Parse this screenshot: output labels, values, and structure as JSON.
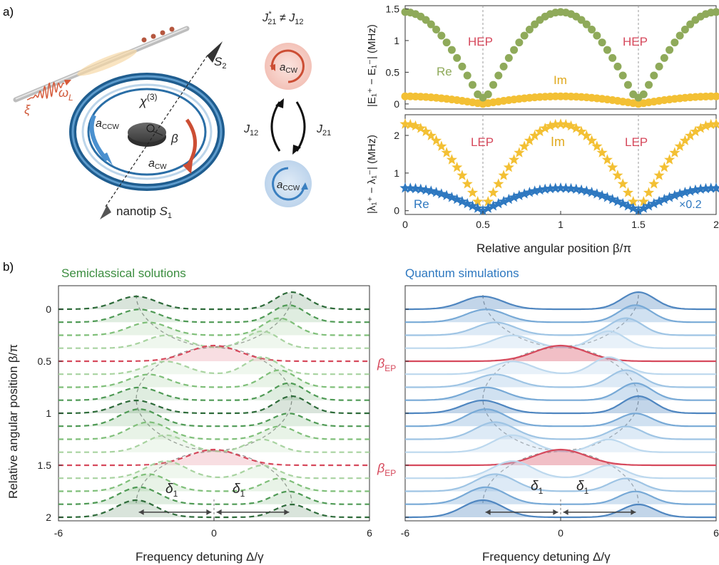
{
  "figure": {
    "panel_a": "a)",
    "panel_b": "b)",
    "schematic": {
      "xi": "ξ",
      "omega": "ω",
      "omega_sub": "L",
      "chi": "χ",
      "chi_sup": "(3)",
      "s2": "S",
      "s2_sub": "2",
      "a_ccw": "a",
      "a_ccw_sub": "CCW",
      "a_cw": "a",
      "a_cw_sub": "CW",
      "beta": "β",
      "nanotip": "nanotip ",
      "s1": "S",
      "s1_sub": "1"
    },
    "coupling": {
      "title_main": "J",
      "title_sup": "*",
      "title_sub": "21",
      "title_neq": " ≠ J",
      "title_sub2": "12",
      "top_mode": "a",
      "top_mode_sub": "CW",
      "bottom_mode": "a",
      "bottom_mode_sub": "CCW",
      "left_label": "J",
      "left_sub": "12",
      "right_label": "J",
      "right_sub": "21"
    },
    "colors": {
      "re_top": "#8faa5a",
      "im": "#f3c034",
      "re_bottom": "#2e78c0",
      "ep": "#d6495c",
      "green_dark": "#0f3d1f",
      "blue_dark": "#2a5a9e"
    }
  },
  "chart_data": [
    {
      "type": "scatter",
      "id": "top_right",
      "ylabel": "|E₁⁺ − E₁⁻| (MHz)",
      "xlim": [
        0,
        2
      ],
      "ylim": [
        0,
        1.5
      ],
      "yticks": [
        "0",
        "0.5",
        "1",
        "1.5"
      ],
      "annotations": [
        "HEP",
        "HEP"
      ],
      "series": [
        {
          "name": "Re",
          "model": "1.45*|cos(pi*beta)|, flattening to 0.1 near EP"
        },
        {
          "name": "Im",
          "model": "0.12*|cos(pi*beta)| near 0 away from EP"
        }
      ]
    },
    {
      "type": "scatter",
      "id": "middle_right",
      "ylabel": "|λ₁⁺ − λ₁⁻| (MHz)",
      "xlabel": "Relative angular position β/π",
      "xlim": [
        0,
        2
      ],
      "ylim": [
        0,
        2.5
      ],
      "xticks": [
        "0",
        "0.5",
        "1",
        "1.5",
        "2"
      ],
      "yticks": [
        "0",
        "1",
        "2"
      ],
      "annotations": [
        "LEP",
        "LEP"
      ],
      "scale_note": "×0.2",
      "series": [
        {
          "name": "Im",
          "model": "2.3*|cos(pi*beta)|"
        },
        {
          "name": "Re",
          "model": "0.6*|cos(pi*beta)|"
        }
      ]
    },
    {
      "type": "line",
      "id": "semiclassical",
      "title": "Semiclassical solutions",
      "xlabel": "Frequency detuning Δ/γ",
      "ylabel": "Relative angular position β/π",
      "xlim": [
        -6,
        6
      ],
      "ylim": [
        0,
        2
      ],
      "xticks": [
        "-6",
        "0",
        "6"
      ],
      "yticks": [
        "0",
        "0.5",
        "1",
        "1.5",
        "2"
      ],
      "delta_labels": [
        "δ",
        "δ"
      ],
      "delta_sub": "1"
    },
    {
      "type": "line",
      "id": "quantum",
      "title": "Quantum simulations",
      "xlabel": "Frequency detuning Δ/γ",
      "xlim": [
        -6,
        6
      ],
      "ylim": [
        0,
        2
      ],
      "xticks": [
        "-6",
        "0",
        "6"
      ],
      "ep_labels": [
        "β",
        "β"
      ],
      "ep_sub": "EP",
      "delta_labels": [
        "δ",
        "δ"
      ],
      "delta_sub": "1"
    }
  ]
}
